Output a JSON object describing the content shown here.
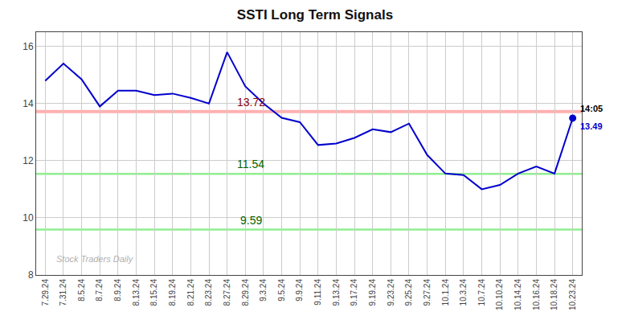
{
  "chart_data": {
    "type": "line",
    "title": "SSTI Long Term Signals",
    "categories": [
      "7.29.24",
      "7.31.24",
      "8.5.24",
      "8.7.24",
      "8.9.24",
      "8.13.24",
      "8.15.24",
      "8.19.24",
      "8.21.24",
      "8.23.24",
      "8.27.24",
      "8.29.24",
      "9.3.24",
      "9.5.24",
      "9.9.24",
      "9.11.24",
      "9.13.24",
      "9.17.24",
      "9.19.24",
      "9.23.24",
      "9.25.24",
      "9.27.24",
      "10.1.24",
      "10.3.24",
      "10.7.24",
      "10.10.24",
      "10.14.24",
      "10.16.24",
      "10.18.24",
      "10.23.24"
    ],
    "values": [
      14.8,
      15.4,
      14.85,
      13.9,
      14.45,
      14.45,
      14.3,
      14.35,
      14.2,
      14.0,
      15.8,
      14.6,
      14.0,
      13.5,
      13.35,
      12.55,
      12.6,
      12.8,
      13.1,
      13.0,
      13.3,
      12.2,
      11.55,
      11.5,
      11.0,
      11.15,
      11.55,
      11.8,
      11.55,
      13.49
    ],
    "color": "#0000cc",
    "ylim": [
      8,
      16.5
    ],
    "yticks": [
      8,
      10,
      12,
      14,
      16
    ],
    "grid": true,
    "reference_lines": [
      {
        "value": 13.72,
        "label": "13.72",
        "color": "#ffb0b0",
        "label_color": "#8b0000"
      },
      {
        "value": 11.54,
        "label": "11.54",
        "color": "#90ee90",
        "label_color": "#006400"
      },
      {
        "value": 9.59,
        "label": "9.59",
        "color": "#90ee90",
        "label_color": "#006400"
      }
    ],
    "annotations": [
      {
        "text": "14:05",
        "x": "10.23.24"
      },
      {
        "text": "13.49",
        "x": "10.23.24",
        "y": 13.49,
        "color": "#0000cc"
      },
      {
        "text": "Stock Traders Daily",
        "color": "#b0b0b0"
      }
    ]
  }
}
